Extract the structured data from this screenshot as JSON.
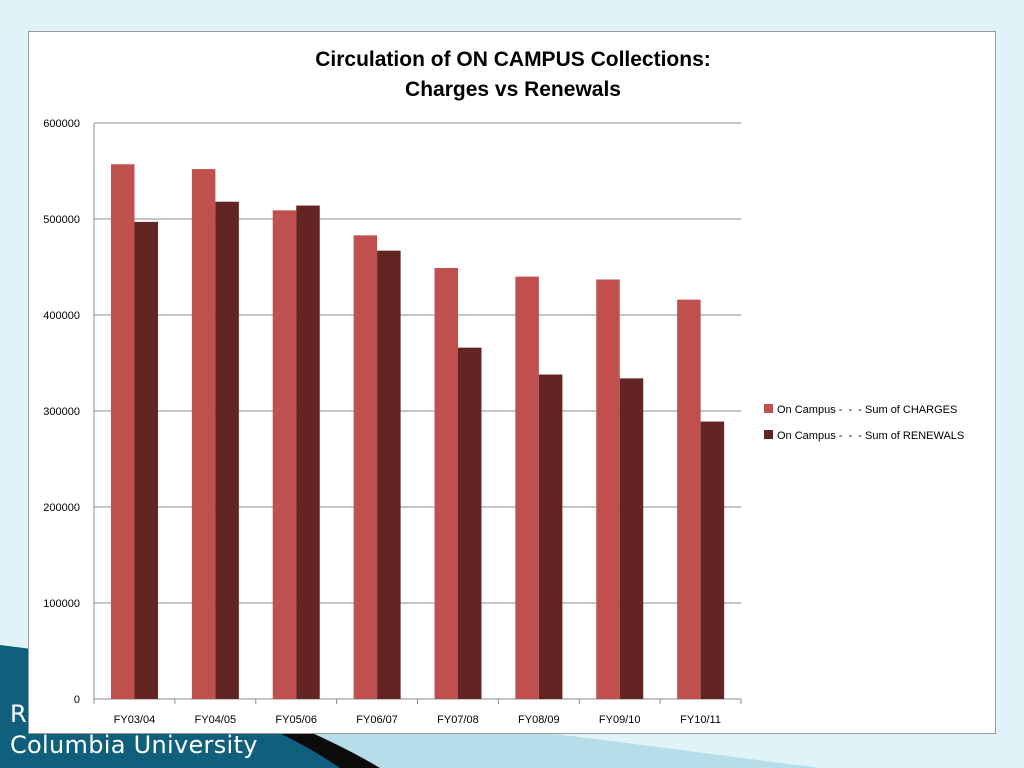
{
  "footer": {
    "line1": "R",
    "line2": "Columbia University"
  },
  "colors": {
    "charges": "#c0504d",
    "renewals": "#632523",
    "background": "#dff3f8",
    "footer_dark": "#0f5f7d"
  },
  "chart_data": {
    "type": "bar",
    "title": "Circulation of ON CAMPUS Collections:",
    "subtitle": "Charges vs Renewals",
    "xlabel": "",
    "ylabel": "",
    "ylim": [
      0,
      600000
    ],
    "yticks": [
      0,
      100000,
      200000,
      300000,
      400000,
      500000,
      600000
    ],
    "ytick_labels": [
      "0",
      "100000",
      "200000",
      "300000",
      "400000",
      "500000",
      "600000"
    ],
    "grid": true,
    "legend_position": "right",
    "categories": [
      "FY03/04",
      "FY04/05",
      "FY05/06",
      "FY06/07",
      "FY07/08",
      "FY08/09",
      "FY09/10",
      "FY10/11"
    ],
    "series": [
      {
        "name": "On Campus -  -  - Sum of CHARGES",
        "color": "#c0504d",
        "values": [
          557000,
          552000,
          509000,
          483000,
          449000,
          440000,
          437000,
          416000
        ]
      },
      {
        "name": "On Campus -  -  - Sum of RENEWALS",
        "color": "#632523",
        "values": [
          497000,
          518000,
          514000,
          467000,
          366000,
          338000,
          334000,
          289000
        ]
      }
    ]
  }
}
